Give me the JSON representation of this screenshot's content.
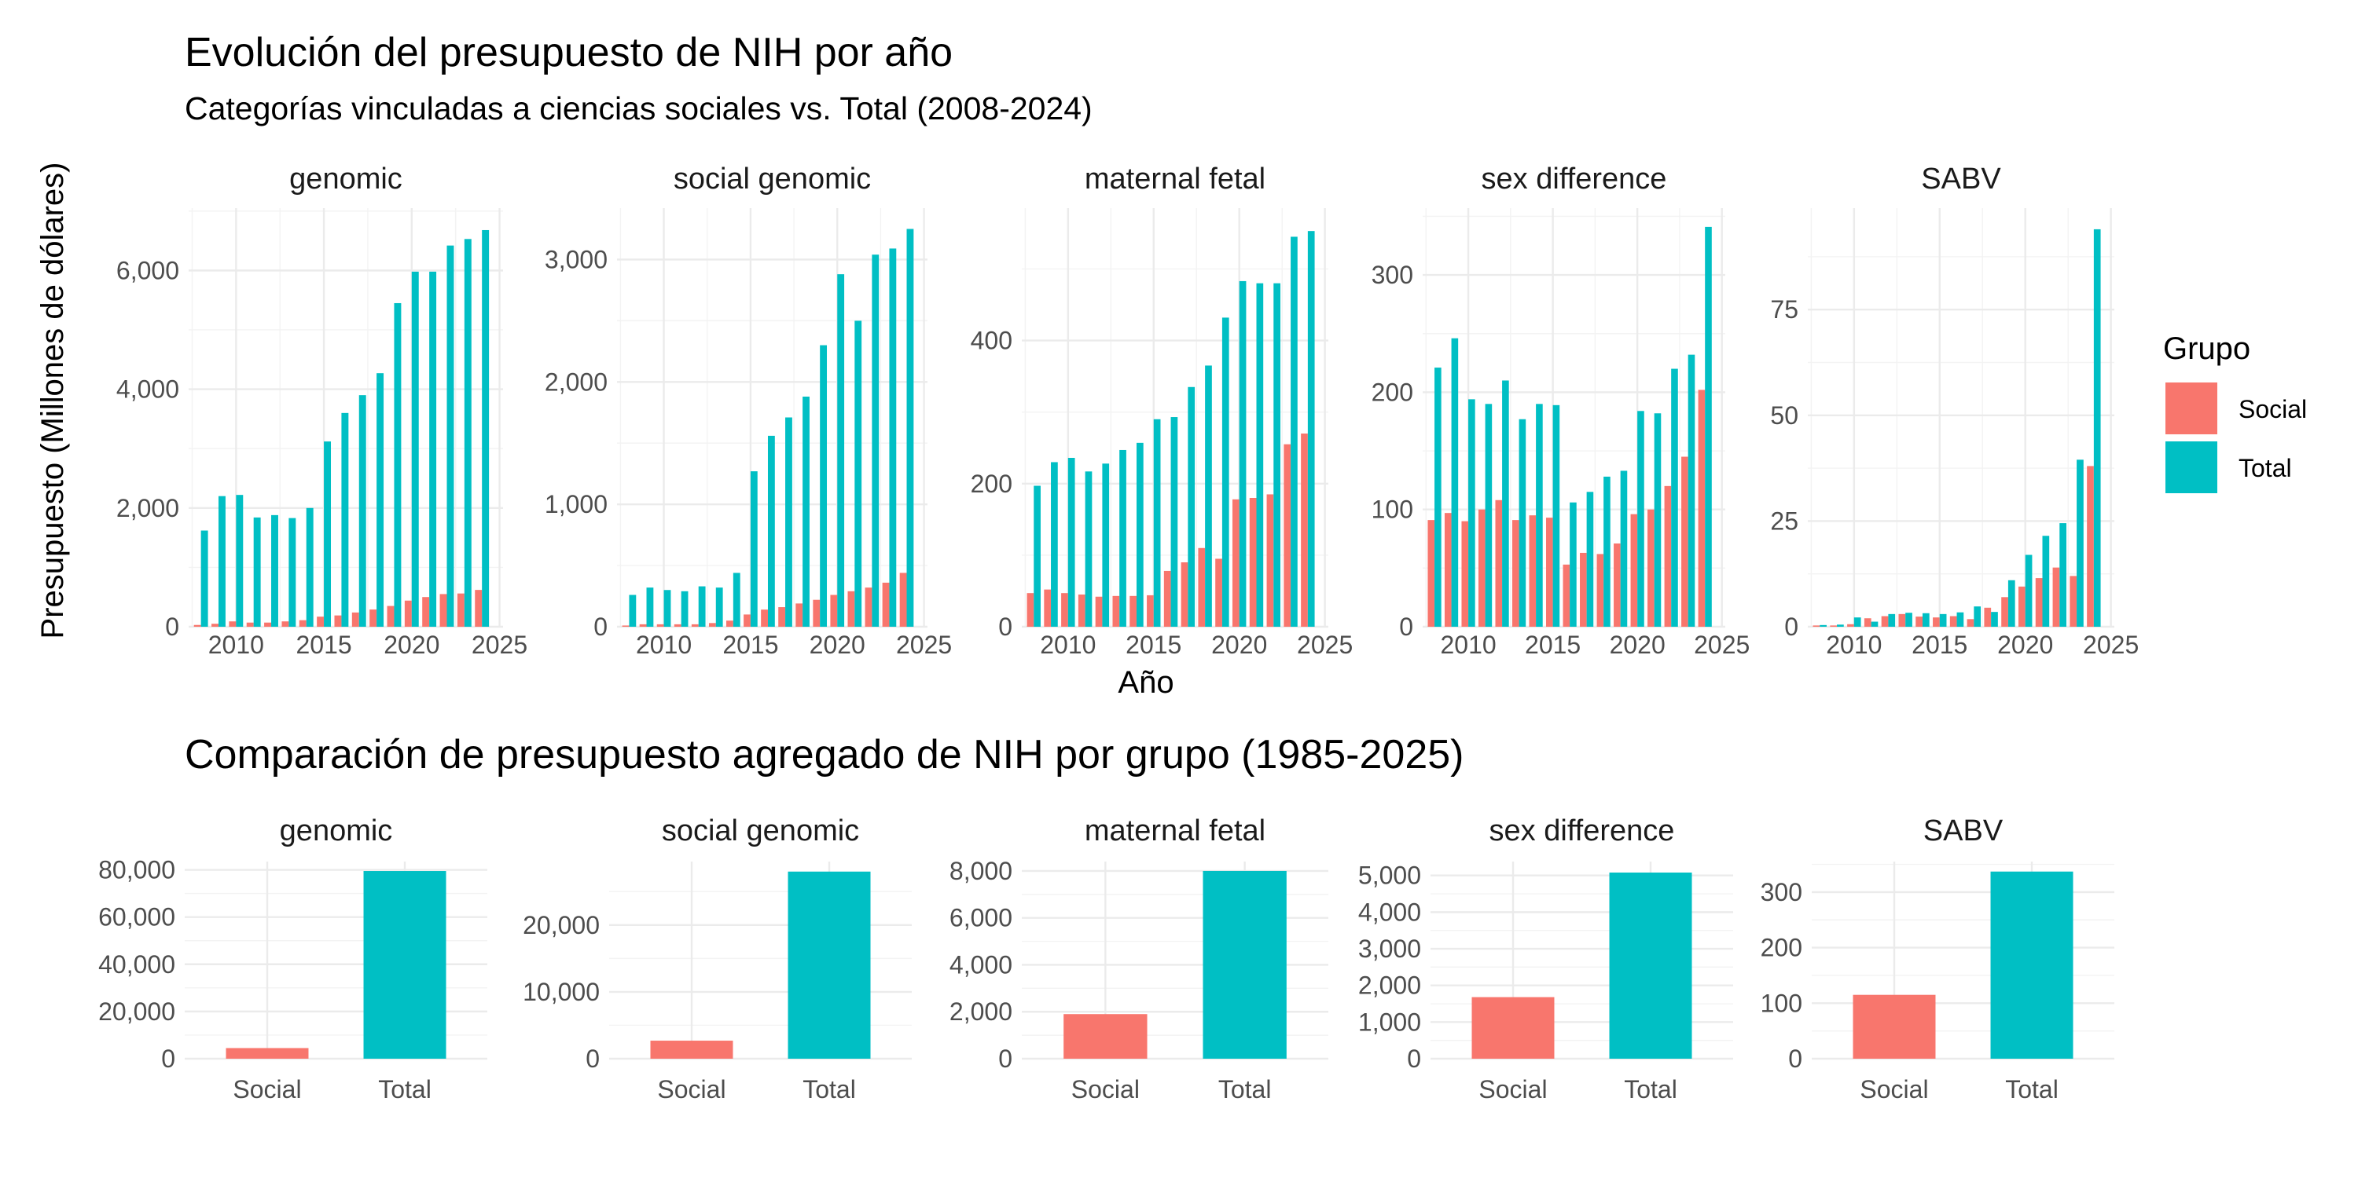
{
  "chart_data": [
    {
      "type": "bar",
      "title": "Evolución del presupuesto de NIH por año",
      "subtitle": "Categorías vinculadas a ciencias sociales vs. Total (2008-2024)",
      "xlabel": "Año",
      "ylabel": "Presupuesto (Millones de dólares)",
      "legend": {
        "title": "Grupo",
        "position": "right",
        "entries": [
          "Social",
          "Total"
        ]
      },
      "colors": {
        "Social": "#F8766D",
        "Total": "#00BFC4"
      },
      "x": [
        2008,
        2009,
        2010,
        2011,
        2012,
        2013,
        2014,
        2015,
        2016,
        2017,
        2018,
        2019,
        2020,
        2021,
        2022,
        2023,
        2024
      ],
      "x_ticks": [
        2010,
        2015,
        2020,
        2025
      ],
      "xlim": [
        2007.3,
        2025.2
      ],
      "facets": [
        {
          "name": "genomic",
          "ylim": [
            0,
            7050
          ],
          "y_ticks": [
            0,
            2000,
            4000,
            6000
          ],
          "y_tick_labels": [
            "0",
            "2,000",
            "4,000",
            "6,000"
          ],
          "series": [
            {
              "name": "Social",
              "values": [
                30,
                50,
                90,
                70,
                70,
                90,
                110,
                170,
                190,
                240,
                290,
                350,
                440,
                500,
                550,
                560,
                620
              ]
            },
            {
              "name": "Total",
              "values": [
                1620,
                2200,
                2220,
                1840,
                1880,
                1830,
                2000,
                3120,
                3600,
                3900,
                4270,
                5450,
                5980,
                5980,
                6420,
                6530,
                6680
              ]
            }
          ]
        },
        {
          "name": "social genomic",
          "ylim": [
            0,
            3420
          ],
          "y_ticks": [
            0,
            1000,
            2000,
            3000
          ],
          "y_tick_labels": [
            "0",
            "1,000",
            "2,000",
            "3,000"
          ],
          "series": [
            {
              "name": "Social",
              "values": [
                10,
                20,
                20,
                20,
                20,
                30,
                50,
                100,
                140,
                160,
                190,
                220,
                260,
                290,
                320,
                360,
                440
              ]
            },
            {
              "name": "Total",
              "values": [
                260,
                320,
                300,
                290,
                330,
                320,
                440,
                1270,
                1560,
                1710,
                1880,
                2300,
                2880,
                2500,
                3040,
                3090,
                3250
              ]
            }
          ]
        },
        {
          "name": "maternal fetal",
          "ylim": [
            0,
            585
          ],
          "y_ticks": [
            0,
            200,
            400
          ],
          "y_tick_labels": [
            "0",
            "200",
            "400"
          ],
          "series": [
            {
              "name": "Social",
              "values": [
                47,
                52,
                47,
                45,
                42,
                43,
                43,
                44,
                78,
                90,
                110,
                95,
                178,
                180,
                185,
                255,
                270
              ]
            },
            {
              "name": "Total",
              "values": [
                197,
                230,
                236,
                217,
                228,
                247,
                257,
                290,
                293,
                335,
                365,
                432,
                483,
                480,
                480,
                545,
                553
              ]
            }
          ]
        },
        {
          "name": "sex difference",
          "ylim": [
            0,
            357
          ],
          "y_ticks": [
            0,
            100,
            200,
            300
          ],
          "y_tick_labels": [
            "0",
            "100",
            "200",
            "300"
          ],
          "series": [
            {
              "name": "Social",
              "values": [
                91,
                97,
                90,
                100,
                108,
                91,
                95,
                93,
                53,
                63,
                62,
                71,
                96,
                100,
                120,
                145,
                202
              ]
            },
            {
              "name": "Total",
              "values": [
                221,
                246,
                194,
                190,
                210,
                177,
                190,
                189,
                106,
                115,
                128,
                133,
                184,
                182,
                220,
                232,
                341
              ]
            }
          ]
        },
        {
          "name": "SABV",
          "ylim": [
            0,
            99
          ],
          "y_ticks": [
            0,
            25,
            50,
            75
          ],
          "y_tick_labels": [
            "0",
            "25",
            "50",
            "75"
          ],
          "series": [
            {
              "name": "Social",
              "values": [
                0.3,
                0.3,
                0.6,
                2.0,
                2.5,
                3.0,
                2.4,
                2.2,
                2.5,
                1.8,
                4.5,
                7.0,
                9.5,
                11.5,
                14.0,
                12.0,
                38.0
              ]
            },
            {
              "name": "Total",
              "values": [
                0.4,
                0.5,
                2.2,
                1.2,
                3.0,
                3.3,
                3.2,
                3.0,
                3.4,
                4.8,
                3.5,
                11.0,
                17.0,
                21.5,
                24.5,
                39.5,
                94.0
              ]
            }
          ]
        }
      ]
    },
    {
      "type": "bar",
      "title": "Comparación de presupuesto agregado de NIH por grupo (1985-2025)",
      "categories": [
        "Social",
        "Total"
      ],
      "colors": {
        "Social": "#F8766D",
        "Total": "#00BFC4"
      },
      "facets": [
        {
          "name": "genomic",
          "values": [
            4500,
            79500
          ],
          "ylim": [
            0,
            83500
          ],
          "y_ticks": [
            0,
            20000,
            40000,
            60000,
            80000
          ],
          "y_tick_labels": [
            "0",
            "20,000",
            "40,000",
            "60,000",
            "80,000"
          ]
        },
        {
          "name": "social genomic",
          "values": [
            2700,
            28000
          ],
          "ylim": [
            0,
            29500
          ],
          "y_ticks": [
            0,
            10000,
            20000
          ],
          "y_tick_labels": [
            "0",
            "10,000",
            "20,000"
          ]
        },
        {
          "name": "maternal fetal",
          "values": [
            1900,
            8000
          ],
          "ylim": [
            0,
            8400
          ],
          "y_ticks": [
            0,
            2000,
            4000,
            6000,
            8000
          ],
          "y_tick_labels": [
            "0",
            "2,000",
            "4,000",
            "6,000",
            "8,000"
          ]
        },
        {
          "name": "sex difference",
          "values": [
            1680,
            5080
          ],
          "ylim": [
            0,
            5380
          ],
          "y_ticks": [
            0,
            1000,
            2000,
            3000,
            4000,
            5000
          ],
          "y_tick_labels": [
            "0",
            "1,000",
            "2,000",
            "3,000",
            "4,000",
            "5,000"
          ]
        },
        {
          "name": "SABV",
          "values": [
            115,
            337
          ],
          "ylim": [
            0,
            355
          ],
          "y_ticks": [
            0,
            100,
            200,
            300
          ],
          "y_tick_labels": [
            "0",
            "100",
            "200",
            "300"
          ]
        }
      ]
    }
  ]
}
